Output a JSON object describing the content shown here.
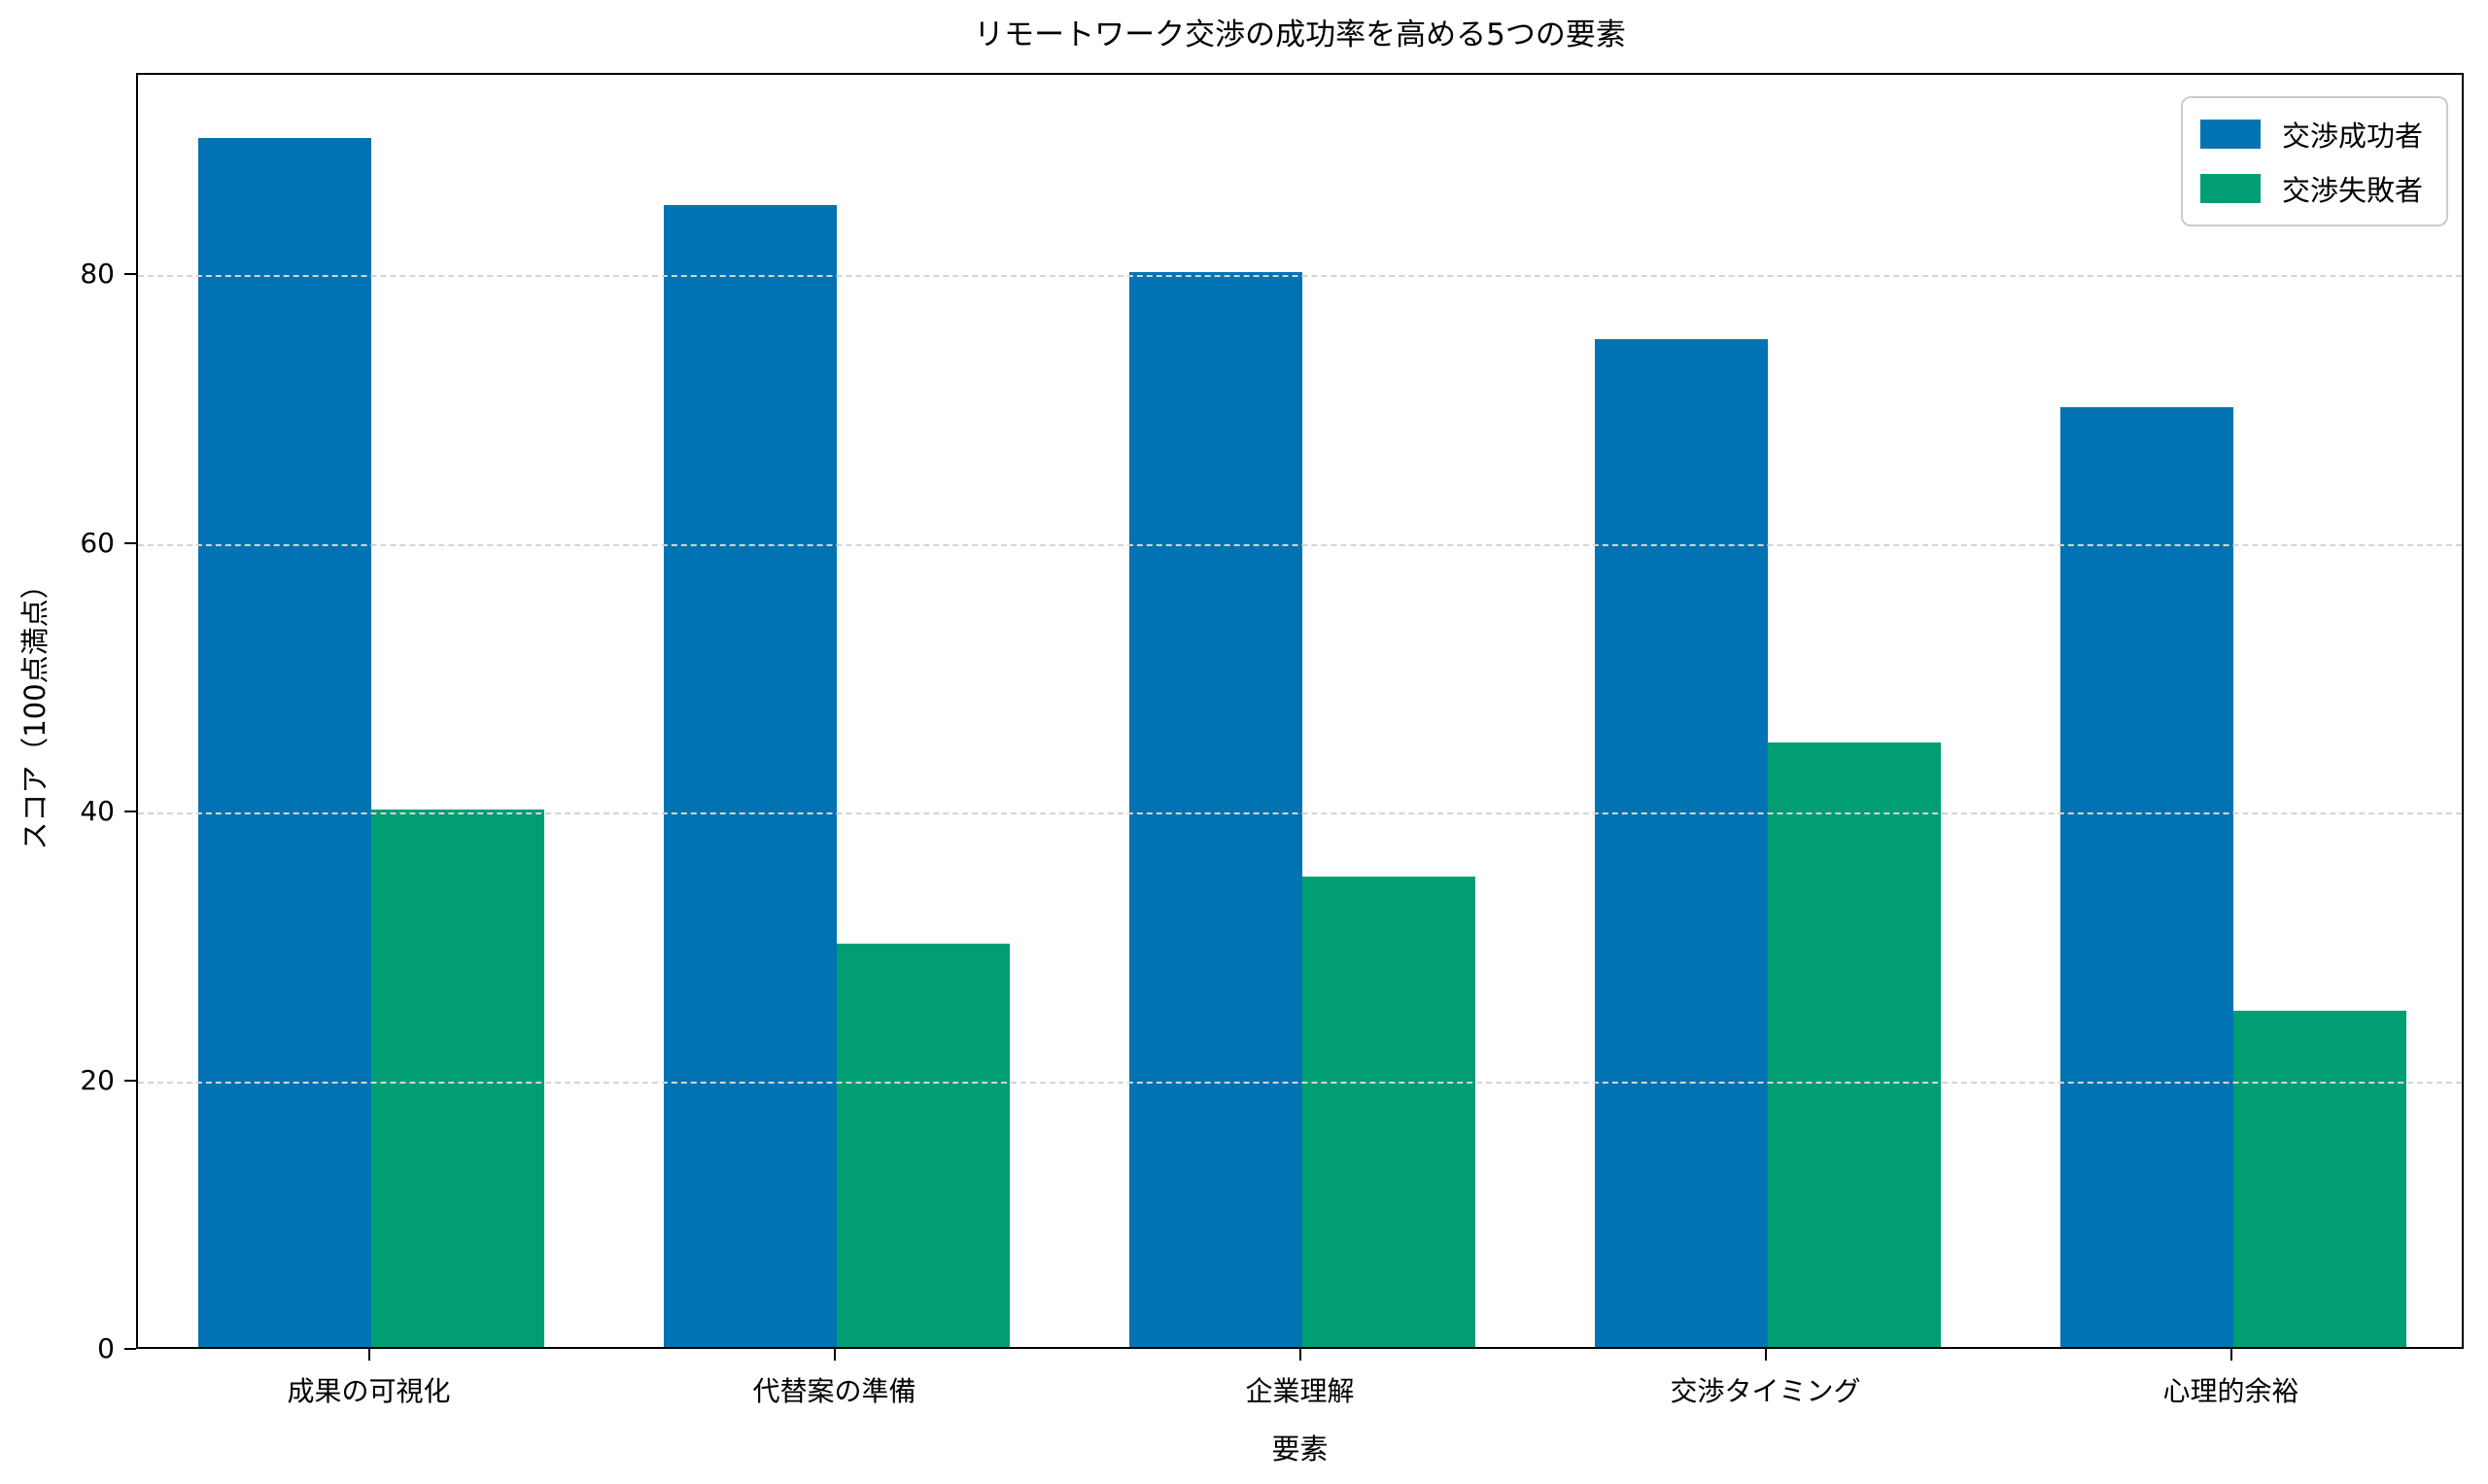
{
  "chart_data": {
    "type": "bar",
    "title": "リモートワーク交渉の成功率を高める5つの要素",
    "xlabel": "要素",
    "ylabel": "スコア（100点満点）",
    "categories": [
      "成果の可視化",
      "代替案の準備",
      "企業理解",
      "交渉タイミング",
      "心理的余裕"
    ],
    "series": [
      {
        "name": "交渉成功者",
        "color": "#0173b2",
        "values": [
          90,
          85,
          80,
          75,
          70
        ]
      },
      {
        "name": "交渉失敗者",
        "color": "#029e73",
        "values": [
          40,
          30,
          35,
          45,
          25
        ]
      }
    ],
    "ylim": [
      0,
      95
    ],
    "yticks": [
      0,
      20,
      40,
      60,
      80
    ],
    "grid": "horizontal-dashed",
    "legend_position": "upper-right",
    "colors": {
      "success": "#0173b2",
      "failure": "#029e73",
      "grid": "#d4d4d4",
      "text": "#000000",
      "background": "#ffffff"
    }
  }
}
